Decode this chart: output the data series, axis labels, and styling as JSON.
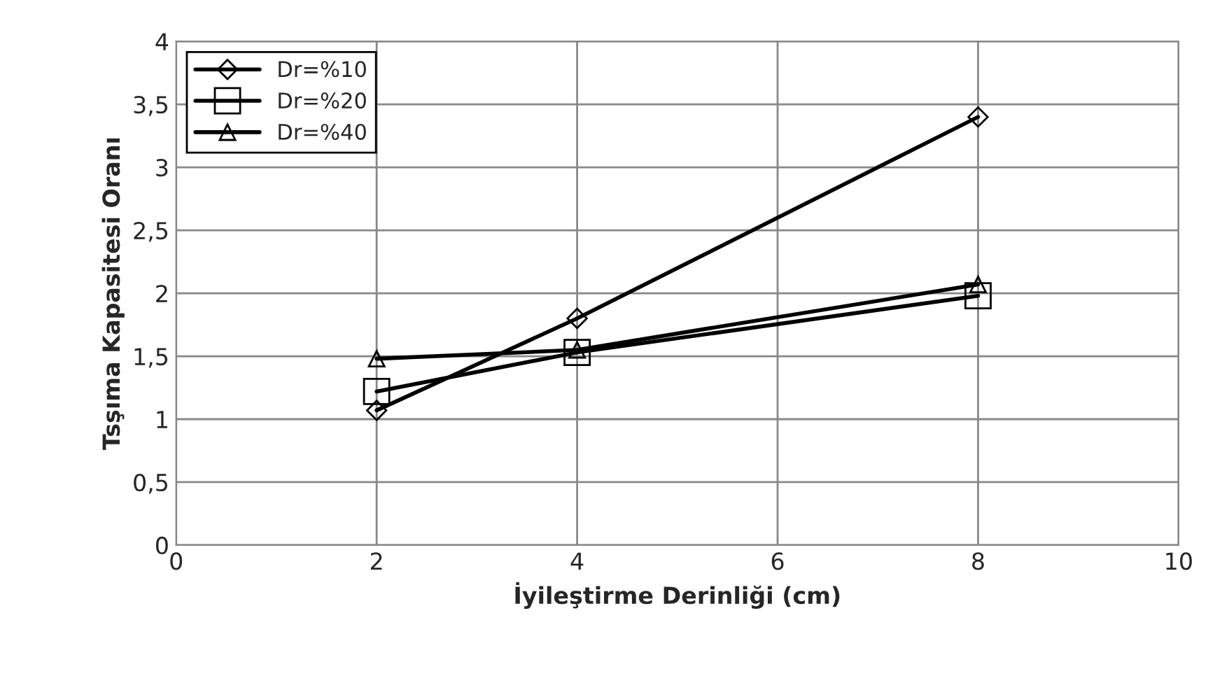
{
  "chart_data": {
    "type": "line",
    "xlabel": "İyileştirme Derinliği (cm)",
    "ylabel": "Tsşıma Kapasitesi Oranı",
    "xlim": [
      0,
      10
    ],
    "xticks": [
      0,
      2,
      4,
      6,
      8,
      10
    ],
    "ylim": [
      0,
      4
    ],
    "yticks": [
      0,
      {
        "value": 0.5,
        "label": "0,5"
      },
      1,
      {
        "value": 1.5,
        "label": "1,5"
      },
      2,
      {
        "value": 2.5,
        "label": "2,5"
      },
      3,
      {
        "value": 3.5,
        "label": "3,5"
      },
      4
    ],
    "grid": true,
    "legend": "top left",
    "line_style": "solid",
    "series": [
      {
        "name": "Dr=%10",
        "color": "#000000",
        "marker": "diamond",
        "x": [
          2,
          4,
          8
        ],
        "values": [
          1.07,
          1.8,
          3.4
        ]
      },
      {
        "name": "Dr=%20",
        "color": "#000000",
        "marker": "square",
        "x": [
          2,
          4,
          8
        ],
        "values": [
          1.22,
          1.53,
          1.98
        ]
      },
      {
        "name": "Dr=%40",
        "color": "#000000",
        "marker": "triangle",
        "x": [
          2,
          4,
          8
        ],
        "values": [
          1.48,
          1.55,
          2.07
        ]
      }
    ]
  }
}
